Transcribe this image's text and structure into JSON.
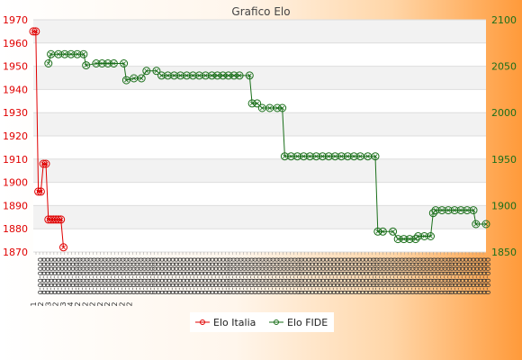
{
  "chart_data": {
    "type": "line",
    "title": "Grafico Elo",
    "grid": true,
    "legend_position": "bottom-center",
    "y_left": {
      "min": 1870,
      "max": 1970,
      "step": 10,
      "color": "#e00000"
    },
    "y_right": {
      "min": 1850,
      "max": 2100,
      "step": 50,
      "color": "#1a6f1a"
    },
    "x_count": 126,
    "x_tick_labels": [
      "1",
      "2",
      "3",
      "2",
      "3",
      "4",
      "2",
      "2",
      "2",
      "2",
      "2",
      "2",
      "2",
      "2"
    ],
    "series": [
      {
        "name": "Elo Italia",
        "axis": "left",
        "color": "#e00000",
        "points": [
          [
            0,
            1965
          ],
          [
            1,
            1965
          ],
          [
            2,
            1896
          ],
          [
            3,
            1896
          ],
          [
            4,
            1908
          ],
          [
            5,
            1908
          ],
          [
            6,
            1884
          ],
          [
            7,
            1884
          ],
          [
            8,
            1884
          ],
          [
            9,
            1884
          ],
          [
            10,
            1884
          ],
          [
            11,
            1884
          ],
          [
            12,
            1872
          ]
        ]
      },
      {
        "name": "Elo FIDE",
        "axis": "right",
        "color": "#1a6f1a",
        "points": [
          [
            6,
            2053
          ],
          [
            7,
            2063
          ],
          [
            10,
            2063
          ],
          [
            15,
            2063
          ],
          [
            20,
            2063
          ],
          [
            21,
            2051
          ],
          [
            25,
            2053
          ],
          [
            32,
            2053
          ],
          [
            36,
            2053
          ],
          [
            37,
            2035
          ],
          [
            40,
            2037
          ],
          [
            43,
            2037
          ],
          [
            45,
            2045
          ],
          [
            49,
            2045
          ],
          [
            51,
            2040
          ],
          [
            61,
            2040
          ],
          [
            71,
            2040
          ],
          [
            82,
            2040
          ],
          [
            86,
            2040
          ],
          [
            87,
            2010
          ],
          [
            89,
            2010
          ],
          [
            91,
            2005
          ],
          [
            97,
            2005
          ],
          [
            99,
            2005
          ],
          [
            100,
            1953
          ],
          [
            110,
            1953
          ],
          [
            120,
            1953
          ],
          [
            130,
            1953
          ],
          [
            136,
            1953
          ],
          [
            137,
            1872
          ],
          [
            139,
            1872
          ],
          [
            143,
            1872
          ],
          [
            145,
            1864
          ],
          [
            152,
            1864
          ],
          [
            153,
            1867
          ],
          [
            158,
            1867
          ],
          [
            159,
            1892
          ],
          [
            160,
            1895
          ],
          [
            170,
            1895
          ],
          [
            175,
            1895
          ],
          [
            176,
            1880
          ],
          [
            180,
            1880
          ]
        ]
      }
    ]
  }
}
